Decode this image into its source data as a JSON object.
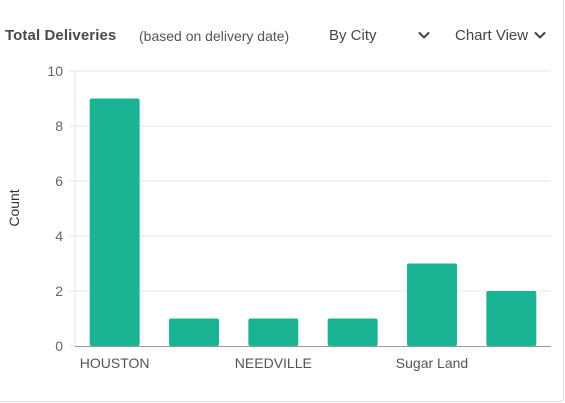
{
  "header": {
    "title": "Total Deliveries",
    "subtitle": "(based on delivery date)",
    "group_select": {
      "value": "By City"
    },
    "view_select": {
      "value": "Chart View"
    }
  },
  "icons": {
    "group_select": "chevron-down-icon",
    "view_select": "chevron-down-icon"
  },
  "colors": {
    "bar": "#1ab394",
    "grid": "#e6e6e6",
    "axis": "#999999",
    "tick_text": "#666666"
  },
  "chart_data": {
    "type": "bar",
    "categories": [
      "HOUSTON",
      "",
      "NEEDVILLE",
      "",
      "Sugar Land",
      ""
    ],
    "values": [
      9,
      1,
      1,
      1,
      3,
      2
    ],
    "ylabel": "Count",
    "xlabel": "",
    "ylim": [
      0,
      10
    ],
    "yticks": [
      "0",
      "2",
      "4",
      "6",
      "8",
      "10"
    ],
    "grid": true,
    "legend": "none"
  }
}
